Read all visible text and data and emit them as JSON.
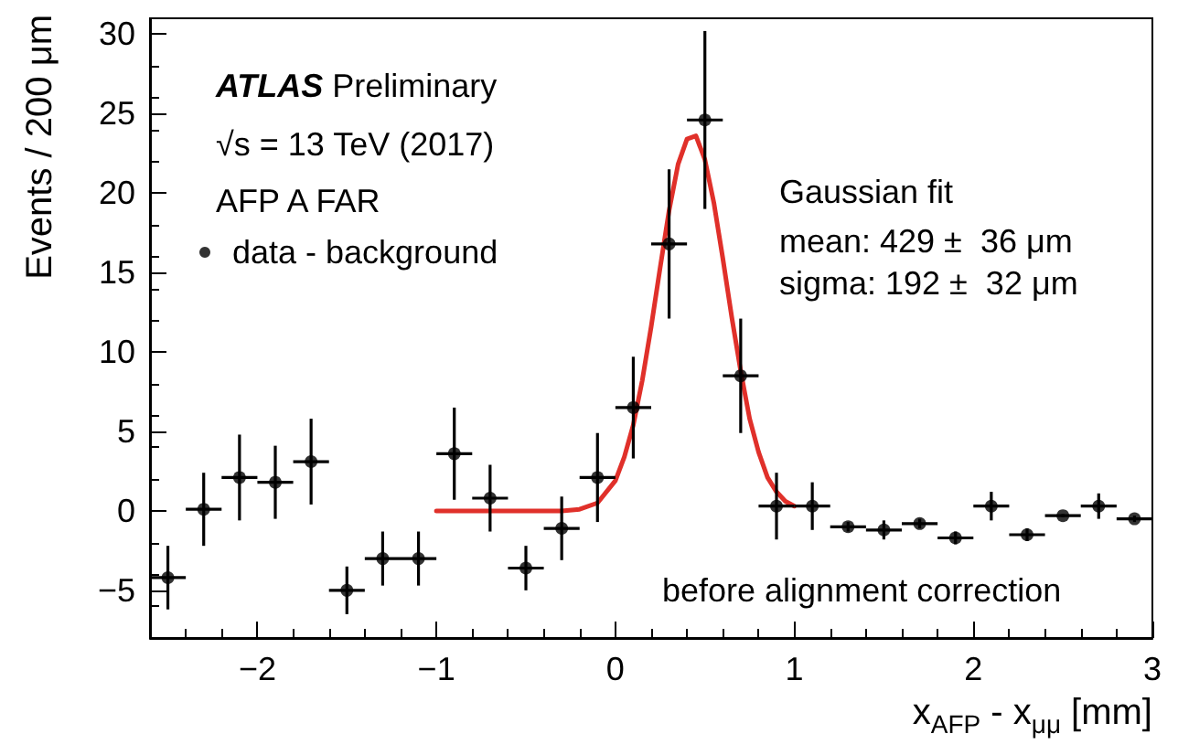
{
  "chart_data": {
    "type": "scatter",
    "xlabel": "x$_{AFP}$ - x$_{μμ}$ [mm]",
    "ylabel": "Events / 200 μm",
    "annotations": [
      "ATLAS Preliminary",
      "√s = 13 TeV (2017)",
      "AFP A FAR",
      "Gaussian fit",
      "mean: 429 ±  36 μm",
      "sigma: 192 ±  32 μm",
      "before alignment correction"
    ],
    "x": [
      -2.5,
      -2.3,
      -2.1,
      -1.9,
      -1.7,
      -1.5,
      -1.3,
      -1.1,
      -0.9,
      -0.7,
      -0.5,
      -0.3,
      -0.1,
      0.1,
      0.3,
      0.5,
      0.7,
      0.9,
      1.1,
      1.3,
      1.5,
      1.7,
      1.9,
      2.1,
      2.3,
      2.5,
      2.7,
      2.9
    ],
    "series": [
      {
        "name": "data - background",
        "color": "#000000",
        "marker": "circle",
        "values": [
          -4.2,
          0.1,
          2.1,
          1.8,
          3.1,
          -5.0,
          -3.0,
          -3.0,
          3.6,
          0.8,
          -3.6,
          -1.1,
          2.1,
          6.5,
          16.8,
          24.6,
          8.5,
          0.3,
          0.3,
          -1.0,
          -1.2,
          -0.8,
          -1.7,
          0.3,
          -1.5,
          -0.3,
          0.3,
          -0.5
        ],
        "errors": [
          2.0,
          2.3,
          2.7,
          2.3,
          2.7,
          1.5,
          1.7,
          1.7,
          2.9,
          2.1,
          1.4,
          2.0,
          2.8,
          3.2,
          4.7,
          5.6,
          3.6,
          2.1,
          1.5,
          0.3,
          0.6,
          0.3,
          0.4,
          0.9,
          0.4,
          0.1,
          0.8,
          0.2
        ],
        "xerrors": [
          0.1,
          0.1,
          0.1,
          0.1,
          0.1,
          0.1,
          0.1,
          0.1,
          0.1,
          0.1,
          0.1,
          0.1,
          0.1,
          0.1,
          0.1,
          0.1,
          0.1,
          0.1,
          0.1,
          0.1,
          0.1,
          0.1,
          0.1,
          0.1,
          0.1,
          0.1,
          0.1,
          0.1
        ]
      },
      {
        "type": "line",
        "color": "#e0302a",
        "marker": "none",
        "x": [
          -1,
          -0.5,
          -0.3,
          -0.2,
          -0.1,
          0,
          0.05,
          0.1,
          0.15,
          0.2,
          0.25,
          0.3,
          0.35,
          0.4,
          0.45,
          0.5,
          0.55,
          0.6,
          0.65,
          0.7,
          0.75,
          0.8,
          0.85,
          0.9,
          0.95,
          1
        ],
        "values": [
          0,
          0,
          0,
          0.1,
          0.5,
          1.9,
          3.4,
          5.4,
          8.2,
          11.6,
          15.3,
          18.9,
          21.8,
          23.4,
          23.6,
          22.1,
          19.4,
          15.9,
          12.2,
          8.8,
          5.8,
          3.7,
          2.1,
          1.2,
          0.6,
          0.3
        ]
      }
    ],
    "xlim": [
      -2.6,
      3
    ],
    "ylim": [
      -8,
      31
    ],
    "xticks": [
      -2,
      -1,
      0,
      1,
      2,
      3
    ],
    "yticks": [
      -5,
      0,
      5,
      10,
      15,
      20,
      25,
      30
    ],
    "grid": false,
    "legend": "top left",
    "line_style": "solid"
  }
}
